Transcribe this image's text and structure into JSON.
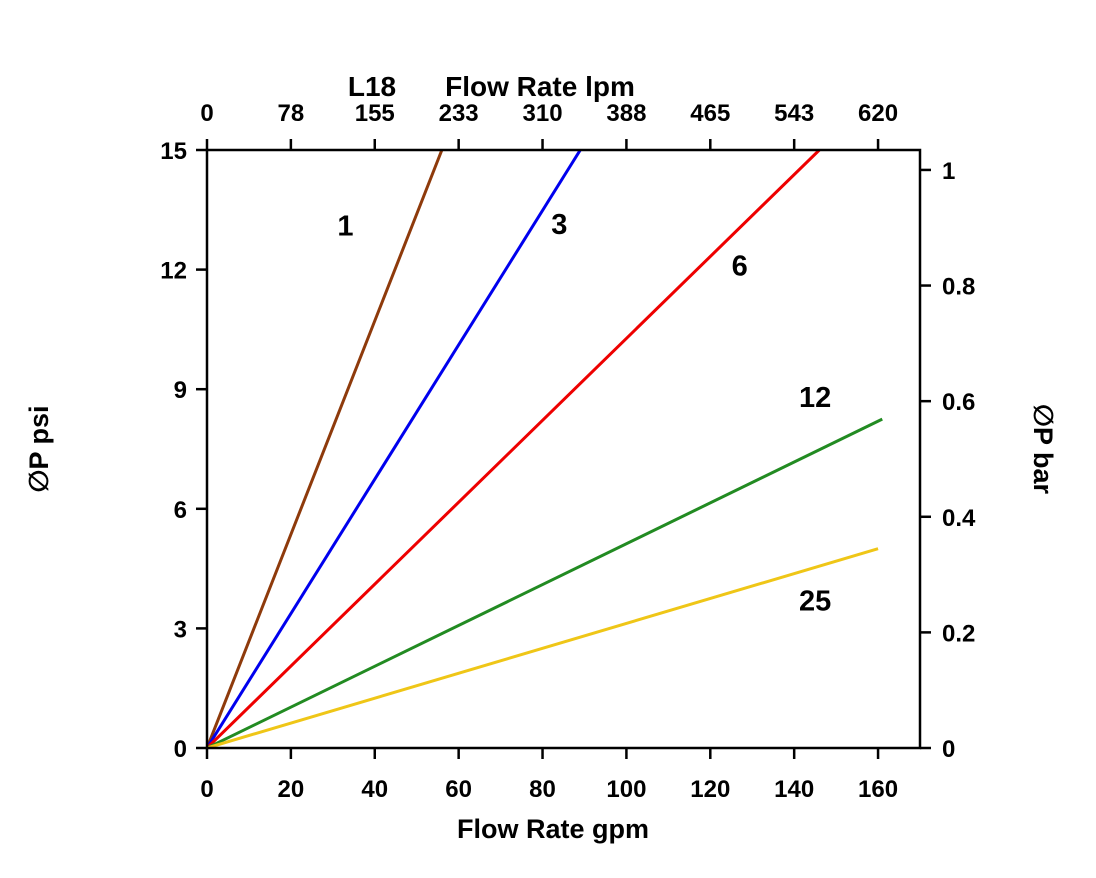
{
  "page": {
    "background": "#ffffff"
  },
  "chart_data": {
    "type": "line",
    "model": "L18",
    "top_axis_label": "Flow Rate lpm",
    "bottom_axis_label": "Flow Rate gpm",
    "left_axis_label": "∅P psi",
    "right_axis_label": "∅P bar",
    "x_gpm": {
      "min": 0,
      "max": 170,
      "ticks": [
        0,
        20,
        40,
        60,
        80,
        100,
        120,
        140,
        160
      ]
    },
    "x_lpm_tick_labels": [
      "0",
      "78",
      "155",
      "233",
      "310",
      "388",
      "465",
      "543",
      "620"
    ],
    "y_psi": {
      "min": 0,
      "max": 15,
      "ticks": [
        0,
        3,
        6,
        9,
        12,
        15
      ]
    },
    "y_bar": {
      "ticks": [
        0,
        0.2,
        0.4,
        0.6,
        0.8,
        1
      ],
      "psi_per_bar": 14.5
    },
    "grid": "off",
    "legend": "inline-labels",
    "series": [
      {
        "name": "1",
        "color": "#8e3a0b",
        "points": [
          [
            0,
            0
          ],
          [
            56,
            15
          ]
        ],
        "label_at": {
          "x": 33,
          "y": 13.1
        }
      },
      {
        "name": "3",
        "color": "#0000ee",
        "points": [
          [
            0,
            0
          ],
          [
            89,
            15
          ]
        ],
        "label_at": {
          "x": 84,
          "y": 13.15
        }
      },
      {
        "name": "6",
        "color": "#ee0000",
        "points": [
          [
            0,
            0
          ],
          [
            146,
            15
          ]
        ],
        "label_at": {
          "x": 127,
          "y": 12.1
        }
      },
      {
        "name": "12",
        "color": "#228b22",
        "points": [
          [
            0,
            0
          ],
          [
            161,
            8.25
          ]
        ],
        "label_at": {
          "x": 145,
          "y": 8.8
        }
      },
      {
        "name": "25",
        "color": "#efc617",
        "points": [
          [
            0,
            0
          ],
          [
            160,
            5.0
          ]
        ],
        "label_at": {
          "x": 145,
          "y": 3.7
        }
      }
    ]
  }
}
